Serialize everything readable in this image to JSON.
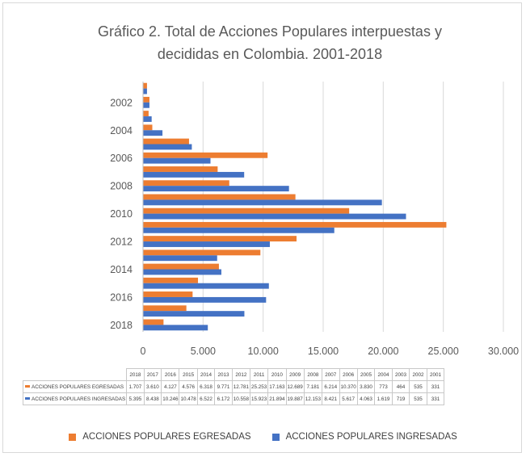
{
  "chart_data": {
    "type": "bar",
    "orientation": "horizontal",
    "title": "Gráfico 2. Total de Acciones Populares interpuestas y decididas  en Colombia.  2001-2018",
    "title_lines": [
      "Gráfico 2. Total de Acciones Populares interpuestas y",
      "decididas  en Colombia.  2001-2018"
    ],
    "categories": [
      "2001",
      "2002",
      "2003",
      "2004",
      "2005",
      "2006",
      "2007",
      "2008",
      "2009",
      "2010",
      "2011",
      "2012",
      "2013",
      "2014",
      "2015",
      "2016",
      "2017",
      "2018"
    ],
    "y_tick_labels": [
      "2002",
      "2004",
      "2006",
      "2008",
      "2010",
      "2012",
      "2014",
      "2016",
      "2018"
    ],
    "x_tick_labels": [
      "0",
      "5.000",
      "10.000",
      "15.000",
      "20.000",
      "25.000",
      "30.000"
    ],
    "xlim": [
      0,
      30000
    ],
    "grid": "vertical",
    "legend_position": "bottom",
    "series": [
      {
        "name": "ACCIONES POPULARES EGRESADAS",
        "color": "#ed7d31",
        "values": [
          331,
          535,
          464,
          773,
          3830,
          10370,
          6214,
          7181,
          12689,
          17163,
          25253,
          12781,
          9771,
          6318,
          4576,
          4127,
          3610,
          1707
        ],
        "labels": [
          "331",
          "535",
          "464",
          "773",
          "3.830",
          "10.370",
          "6.214",
          "7.181",
          "12.689",
          "17.163",
          "25.253",
          "12.781",
          "9.771",
          "6.318",
          "4.576",
          "4.127",
          "3.610",
          "1.707"
        ]
      },
      {
        "name": "ACCIONES POPULARES INGRESADAS",
        "color": "#4472c4",
        "values": [
          331,
          535,
          719,
          1619,
          4063,
          5617,
          8421,
          12153,
          19887,
          21894,
          15923,
          10558,
          6172,
          6522,
          10478,
          10246,
          8438,
          5395
        ],
        "labels": [
          "331",
          "535",
          "719",
          "1.619",
          "4.063",
          "5.617",
          "8.421",
          "12.153",
          "19.887",
          "21.894",
          "15.923",
          "10.558",
          "6.172",
          "6.522",
          "10.478",
          "10.246",
          "8.438",
          "5.395"
        ]
      }
    ],
    "table": {
      "row_labels": [
        "ACCIONES POPULARES EGRESADAS",
        "ACCIONES POPULARES INGRESADAS"
      ],
      "columns": [
        "2018",
        "2017",
        "2016",
        "2015",
        "2014",
        "2013",
        "2012",
        "2011",
        "2010",
        "2009",
        "2008",
        "2007",
        "2006",
        "2005",
        "2004",
        "2003",
        "2002",
        "2001"
      ]
    }
  }
}
